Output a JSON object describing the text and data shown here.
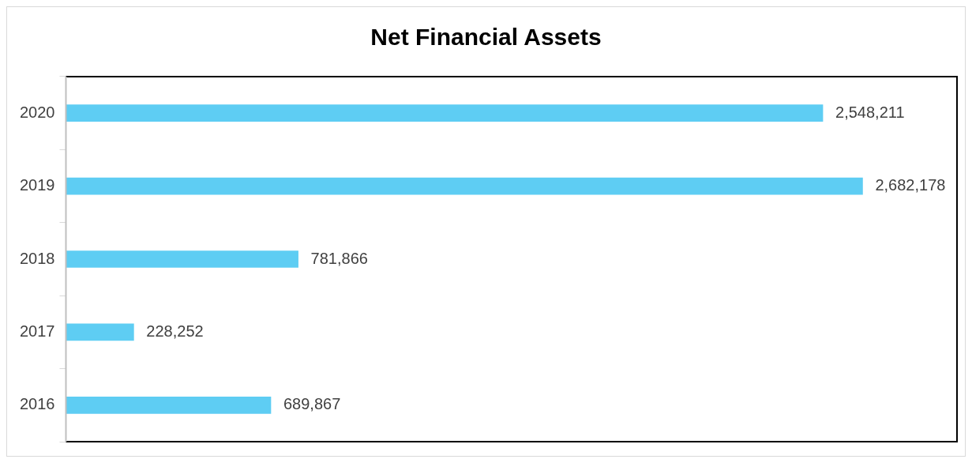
{
  "chart_data": {
    "type": "bar",
    "orientation": "horizontal",
    "title": "Net Financial Assets",
    "categories": [
      "2020",
      "2019",
      "2018",
      "2017",
      "2016"
    ],
    "values": [
      2548211,
      2682178,
      781866,
      228252,
      689867
    ],
    "value_labels": [
      "2,548,211",
      "2,682,178",
      "781,866",
      "228,252",
      "689,867"
    ],
    "color": "#5ecdf3",
    "tick_labels": "y",
    "grid": false,
    "legend": false
  }
}
